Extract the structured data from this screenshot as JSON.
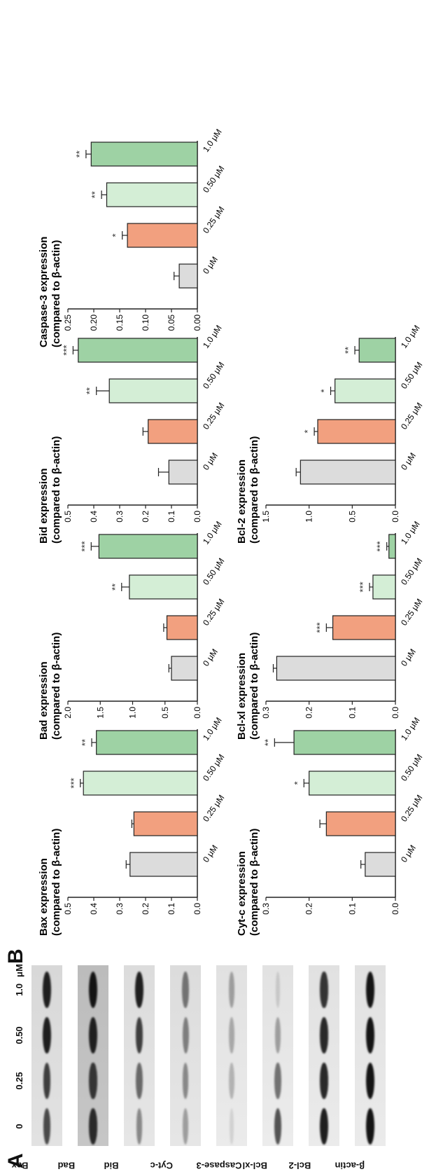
{
  "panel_a": {
    "letter": "A",
    "lanes": [
      "0",
      "0.25",
      "0.50",
      "1.0"
    ],
    "unit": "μM",
    "proteins": [
      {
        "name": "Bax",
        "intensity": [
          0.75,
          0.8,
          0.95,
          0.95
        ],
        "background": 0.12
      },
      {
        "name": "Bad",
        "intensity": [
          0.9,
          0.85,
          0.95,
          1.0
        ],
        "background": 0.35
      },
      {
        "name": "Bid",
        "intensity": [
          0.45,
          0.6,
          0.8,
          0.95
        ],
        "background": 0.08
      },
      {
        "name": "Cyt-c",
        "intensity": [
          0.35,
          0.45,
          0.5,
          0.55
        ],
        "background": 0.08
      },
      {
        "name": "Caspase-3",
        "intensity": [
          0.1,
          0.25,
          0.3,
          0.35
        ],
        "background": 0.04
      },
      {
        "name": "Bcl-xl",
        "intensity": [
          0.7,
          0.55,
          0.35,
          0.15
        ],
        "background": 0.03
      },
      {
        "name": "Bcl-2",
        "intensity": [
          0.95,
          0.9,
          0.9,
          0.85
        ],
        "background": 0.04
      },
      {
        "name": "β-actin",
        "intensity": [
          1.0,
          1.0,
          1.0,
          1.0
        ],
        "background": 0.04
      }
    ]
  },
  "panel_b": {
    "letter": "B"
  },
  "colors": {
    "control": "#dcdcdc",
    "low": "#f2a07f",
    "mid": "#d4eed6",
    "high": "#9ed2a4",
    "edge": "#222222"
  },
  "chart_data": [
    {
      "type": "bar",
      "title": "Bax expression",
      "ylabel": "(compared to β-actin)",
      "categories": [
        "0 μM",
        "0.25 μM",
        "0.50 μM",
        "1.0 μM"
      ],
      "values": [
        0.26,
        0.245,
        0.44,
        0.39
      ],
      "errors": [
        0.015,
        0.008,
        0.012,
        0.018
      ],
      "significance": [
        "",
        "",
        "***",
        "**"
      ],
      "ylim": [
        0,
        0.5
      ],
      "yticks": [
        "0.0",
        "0.1",
        "0.2",
        "0.3",
        "0.4",
        "0.5"
      ]
    },
    {
      "type": "bar",
      "title": "Bad expression",
      "ylabel": "(compared to β-actin)",
      "categories": [
        "0 μM",
        "0.25 μM",
        "0.50 μM",
        "1.0 μM"
      ],
      "values": [
        0.4,
        0.47,
        1.05,
        1.52
      ],
      "errors": [
        0.04,
        0.05,
        0.12,
        0.12
      ],
      "significance": [
        "",
        "",
        "**",
        "***"
      ],
      "ylim": [
        0,
        2.0
      ],
      "yticks": [
        "0.0",
        "0.5",
        "1.0",
        "1.5",
        "2.0"
      ]
    },
    {
      "type": "bar",
      "title": "Bid expression",
      "ylabel": "(compared to β-actin)",
      "categories": [
        "0 μM",
        "0.25 μM",
        "0.50 μM",
        "1.0 μM"
      ],
      "values": [
        0.11,
        0.19,
        0.34,
        0.46
      ],
      "errors": [
        0.04,
        0.02,
        0.05,
        0.02
      ],
      "significance": [
        "",
        "",
        "**",
        "***"
      ],
      "ylim": [
        0,
        0.5
      ],
      "yticks": [
        "0.0",
        "0.1",
        "0.2",
        "0.3",
        "0.4",
        "0.5"
      ]
    },
    {
      "type": "bar",
      "title": "Caspase-3 expression",
      "ylabel": "(compared to β-actin)",
      "categories": [
        "0 μM",
        "0.25 μM",
        "0.50 μM",
        "1.0 μM"
      ],
      "values": [
        0.035,
        0.135,
        0.175,
        0.205
      ],
      "errors": [
        0.01,
        0.01,
        0.01,
        0.01
      ],
      "significance": [
        "",
        "*",
        "**",
        "**"
      ],
      "ylim": [
        0,
        0.25
      ],
      "yticks": [
        "0.00",
        "0.05",
        "0.10",
        "0.15",
        "0.20",
        "0.25"
      ]
    },
    {
      "type": "bar",
      "title": "Cyt-c expression",
      "ylabel": "(compared to β-actin)",
      "categories": [
        "0 μM",
        "0.25 μM",
        "0.50 μM",
        "1.0 μM"
      ],
      "values": [
        0.07,
        0.16,
        0.2,
        0.235
      ],
      "errors": [
        0.01,
        0.015,
        0.012,
        0.045
      ],
      "significance": [
        "",
        "",
        "*",
        "**"
      ],
      "ylim": [
        0,
        0.3
      ],
      "yticks": [
        "0.0",
        "0.1",
        "0.2",
        "0.3"
      ]
    },
    {
      "type": "bar",
      "title": "Bcl-xl expression",
      "ylabel": "(compared to β-actin)",
      "categories": [
        "0 μM",
        "0.25 μM",
        "0.50 μM",
        "1.0 μM"
      ],
      "values": [
        0.275,
        0.145,
        0.052,
        0.015
      ],
      "errors": [
        0.008,
        0.015,
        0.008,
        0.005
      ],
      "significance": [
        "",
        "***",
        "***",
        "***"
      ],
      "ylim": [
        0,
        0.3
      ],
      "yticks": [
        "0.0",
        "0.1",
        "0.2",
        "0.3"
      ]
    },
    {
      "type": "bar",
      "title": "Bcl-2 expression",
      "ylabel": "(compared to β-actin)",
      "categories": [
        "0 μM",
        "0.25 μM",
        "0.50 μM",
        "1.0 μM"
      ],
      "values": [
        1.1,
        0.9,
        0.7,
        0.42
      ],
      "errors": [
        0.05,
        0.04,
        0.05,
        0.05
      ],
      "significance": [
        "",
        "*",
        "*",
        "**"
      ],
      "ylim": [
        0,
        1.5
      ],
      "yticks": [
        "0.0",
        "0.5",
        "1.0",
        "1.5"
      ]
    }
  ]
}
